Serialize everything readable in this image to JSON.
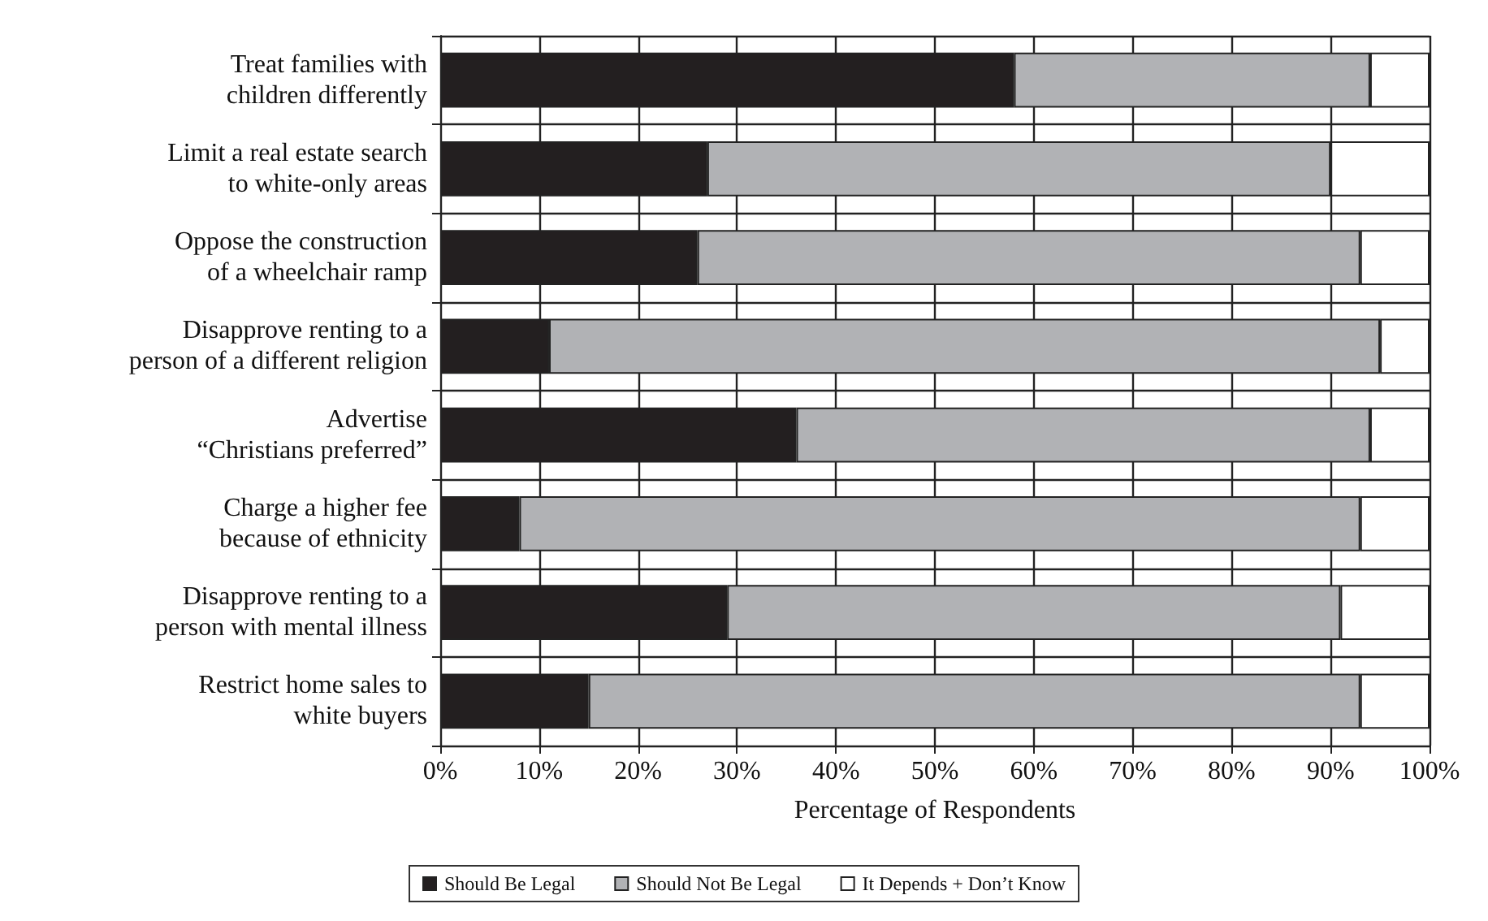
{
  "chart_data": {
    "type": "bar",
    "orientation": "horizontal",
    "stacked": true,
    "xlabel": "Percentage of Respondents",
    "categories": [
      "Treat families with\nchildren differently",
      "Limit a real estate search\nto white-only areas",
      "Oppose the construction\nof a wheelchair ramp",
      "Disapprove renting to a\nperson of a different religion",
      "Advertise\n“Christians preferred”",
      "Charge a higher fee\nbecause of ethnicity",
      "Disapprove renting to a\nperson with mental illness",
      "Restrict home sales to\nwhite buyers"
    ],
    "series": [
      {
        "name": "Should Be Legal",
        "color": "#231f20",
        "values": [
          58,
          27,
          26,
          11,
          36,
          8,
          29,
          15
        ]
      },
      {
        "name": "Should Not Be Legal",
        "color": "#b1b2b5",
        "values": [
          36,
          63,
          67,
          84,
          58,
          85,
          62,
          78
        ]
      },
      {
        "name": "It Depends + Don’t Know",
        "color": "#ffffff",
        "values": [
          6,
          10,
          7,
          5,
          6,
          7,
          9,
          7
        ]
      }
    ],
    "xlim": [
      0,
      100
    ],
    "xticks": [
      {
        "value": 0,
        "label": "0%"
      },
      {
        "value": 10,
        "label": "10%"
      },
      {
        "value": 20,
        "label": "20%"
      },
      {
        "value": 30,
        "label": "30%"
      },
      {
        "value": 40,
        "label": "40%"
      },
      {
        "value": 50,
        "label": "50%"
      },
      {
        "value": 60,
        "label": "60%"
      },
      {
        "value": 70,
        "label": "70%"
      },
      {
        "value": 80,
        "label": "80%"
      },
      {
        "value": 90,
        "label": "90%"
      },
      {
        "value": 100,
        "label": "100%"
      }
    ],
    "grid": true,
    "legend": "bottom"
  }
}
